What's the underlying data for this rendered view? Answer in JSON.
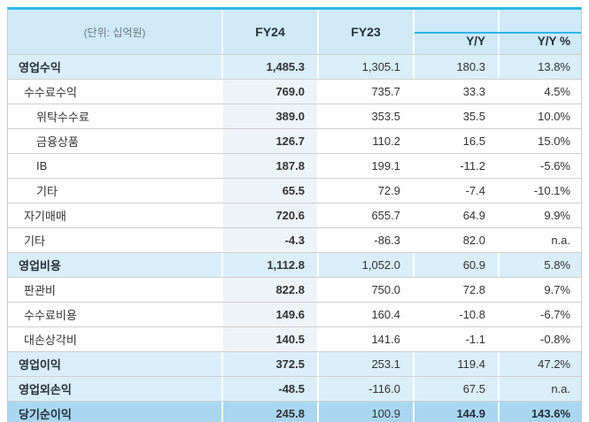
{
  "table": {
    "unit_label": "(단위: 십억원)",
    "columns": [
      "FY24",
      "FY23",
      "Y/Y",
      "Y/Y %"
    ],
    "colors": {
      "accent": "#2eb6ea",
      "header_bg": "#cfe9f7",
      "highlight_row_bg": "#daeef9",
      "total_row_bg": "#a9d7f0"
    },
    "rows": [
      {
        "label": "영업수익",
        "indent": 0,
        "style": "highlight",
        "fy24": "1,485.3",
        "fy23": "1,305.1",
        "yy": "180.3",
        "yy_pct": "13.8%"
      },
      {
        "label": "수수료수익",
        "indent": 1,
        "style": "normal",
        "fy24": "769.0",
        "fy23": "735.7",
        "yy": "33.3",
        "yy_pct": "4.5%"
      },
      {
        "label": "위탁수수료",
        "indent": 2,
        "style": "normal",
        "fy24": "389.0",
        "fy23": "353.5",
        "yy": "35.5",
        "yy_pct": "10.0%"
      },
      {
        "label": "금융상품",
        "indent": 2,
        "style": "normal",
        "fy24": "126.7",
        "fy23": "110.2",
        "yy": "16.5",
        "yy_pct": "15.0%"
      },
      {
        "label": "IB",
        "indent": 2,
        "style": "normal",
        "fy24": "187.8",
        "fy23": "199.1",
        "yy": "-11.2",
        "yy_pct": "-5.6%"
      },
      {
        "label": "기타",
        "indent": 2,
        "style": "normal",
        "fy24": "65.5",
        "fy23": "72.9",
        "yy": "-7.4",
        "yy_pct": "-10.1%"
      },
      {
        "label": "자기매매",
        "indent": 1,
        "style": "normal",
        "fy24": "720.6",
        "fy23": "655.7",
        "yy": "64.9",
        "yy_pct": "9.9%"
      },
      {
        "label": "기타",
        "indent": 1,
        "style": "normal",
        "fy24": "-4.3",
        "fy23": "-86.3",
        "yy": "82.0",
        "yy_pct": "n.a."
      },
      {
        "label": "영업비용",
        "indent": 0,
        "style": "highlight",
        "fy24": "1,112.8",
        "fy23": "1,052.0",
        "yy": "60.9",
        "yy_pct": "5.8%"
      },
      {
        "label": "판관비",
        "indent": 1,
        "style": "normal",
        "fy24": "822.8",
        "fy23": "750.0",
        "yy": "72.8",
        "yy_pct": "9.7%"
      },
      {
        "label": "수수료비용",
        "indent": 1,
        "style": "normal",
        "fy24": "149.6",
        "fy23": "160.4",
        "yy": "-10.8",
        "yy_pct": "-6.7%"
      },
      {
        "label": "대손상각비",
        "indent": 1,
        "style": "normal",
        "fy24": "140.5",
        "fy23": "141.6",
        "yy": "-1.1",
        "yy_pct": "-0.8%"
      },
      {
        "label": "영업이익",
        "indent": 0,
        "style": "highlight",
        "fy24": "372.5",
        "fy23": "253.1",
        "yy": "119.4",
        "yy_pct": "47.2%"
      },
      {
        "label": "영업외손익",
        "indent": 0,
        "style": "highlight",
        "fy24": "-48.5",
        "fy23": "-116.0",
        "yy": "67.5",
        "yy_pct": "n.a."
      },
      {
        "label": "당기순이익",
        "indent": 0,
        "style": "total",
        "fy24": "245.8",
        "fy23": "100.9",
        "yy": "144.9",
        "yy_pct": "143.6%"
      }
    ]
  }
}
